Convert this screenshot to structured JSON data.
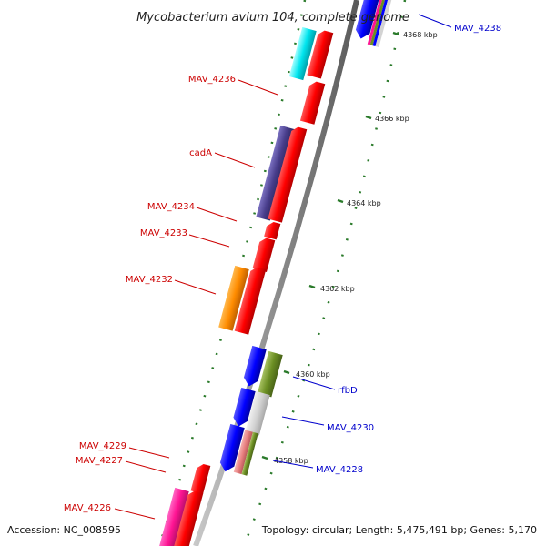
{
  "title": "Mycobacterium avium 104, complete genome",
  "footer": {
    "accession": "Accession: NC_008595",
    "topology": "Topology: circular; Length: 5,475,491 bp; Genes: 5,170"
  },
  "colors": {
    "reverse_label": "#cc0000",
    "forward_label": "#0000cc",
    "backbone": "#8c8c8c",
    "tick_marks": "#2a7a2a"
  },
  "ticks": [
    "4368 kbp",
    "4366 kbp",
    "4364 kbp",
    "4362 kbp",
    "4360 kbp",
    "4358 kbp"
  ],
  "labels_left": [
    "MAV_4236",
    "cadA",
    "MAV_4234",
    "MAV_4233",
    "MAV_4232",
    "MAV_4229",
    "MAV_4227",
    "MAV_4226"
  ],
  "labels_right": [
    "MAV_4238",
    "rfbD",
    "MAV_4230",
    "MAV_4228"
  ]
}
